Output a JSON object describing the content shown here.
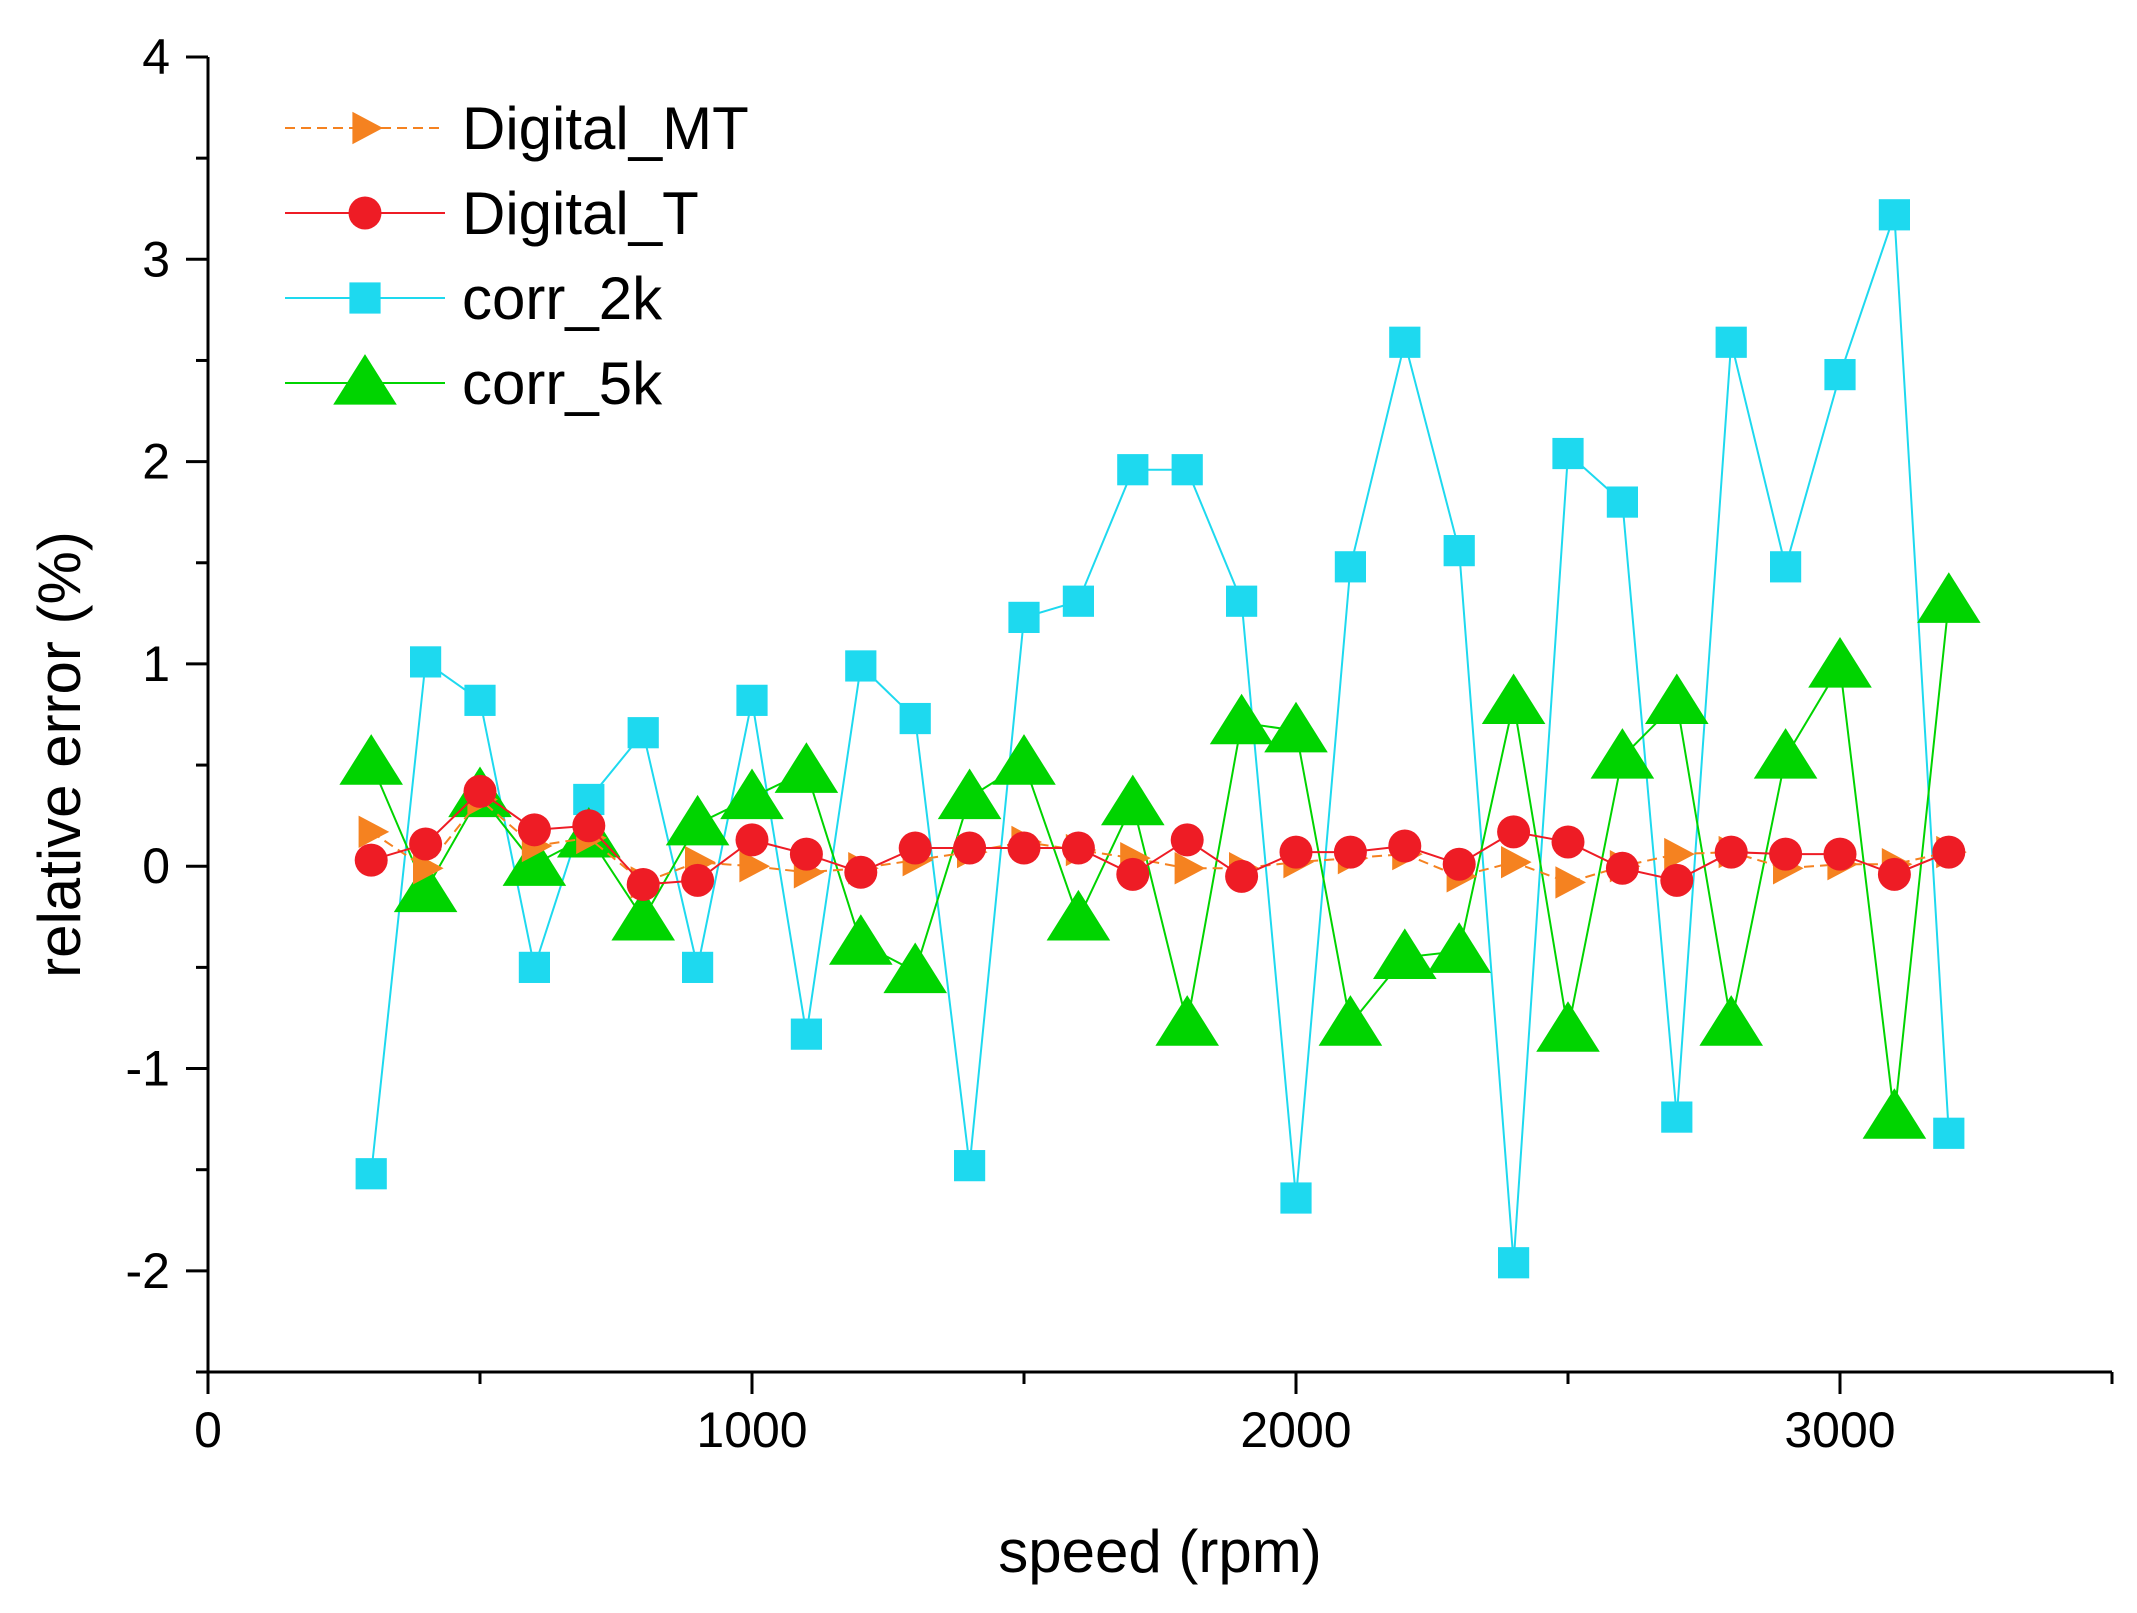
{
  "chart_data": {
    "type": "line",
    "title": "",
    "xlabel": "speed (rpm)",
    "ylabel": "relative error (%)",
    "xlim": [
      0,
      3500
    ],
    "ylim": [
      -2.5,
      4
    ],
    "xticks": [
      0,
      1000,
      2000,
      3000
    ],
    "xtick_labels": [
      "0",
      "1000",
      "2000",
      "3000"
    ],
    "yticks": [
      -2,
      -1,
      0,
      1,
      2,
      3,
      4
    ],
    "ytick_labels": [
      "-2",
      "-1",
      "0",
      "1",
      "2",
      "3",
      "4"
    ],
    "x_minor_step": 500,
    "y_minor_step": 0.5,
    "grid": false,
    "legend_position": "top-left",
    "x": [
      300,
      400,
      500,
      600,
      700,
      800,
      900,
      1000,
      1100,
      1200,
      1300,
      1400,
      1500,
      1600,
      1700,
      1800,
      1900,
      2000,
      2100,
      2200,
      2300,
      2400,
      2500,
      2600,
      2700,
      2800,
      2900,
      3000,
      3100,
      3200
    ],
    "series": [
      {
        "name": "Digital_MT",
        "color": "#F58220",
        "marker": "triangle-right",
        "line_style": "dashed",
        "values": [
          0.17,
          -0.01,
          0.33,
          0.1,
          0.14,
          -0.08,
          0.02,
          0.0,
          -0.03,
          -0.01,
          0.03,
          0.07,
          0.12,
          0.08,
          0.04,
          -0.01,
          -0.01,
          0.02,
          0.04,
          0.06,
          -0.05,
          0.02,
          -0.08,
          0.0,
          0.06,
          0.07,
          -0.01,
          0.01,
          0.01,
          0.07
        ]
      },
      {
        "name": "Digital_T",
        "color": "#EE1C25",
        "marker": "circle",
        "line_style": "solid",
        "values": [
          0.03,
          0.11,
          0.37,
          0.18,
          0.2,
          -0.09,
          -0.07,
          0.13,
          0.06,
          -0.03,
          0.09,
          0.09,
          0.09,
          0.09,
          -0.04,
          0.13,
          -0.05,
          0.07,
          0.07,
          0.1,
          0.01,
          0.17,
          0.12,
          -0.01,
          -0.07,
          0.07,
          0.06,
          0.06,
          -0.04,
          0.07
        ]
      },
      {
        "name": "corr_2k",
        "color": "#1ED9EF",
        "marker": "square",
        "line_style": "solid",
        "values": [
          -1.52,
          1.01,
          0.82,
          -0.5,
          0.33,
          0.66,
          -0.5,
          0.82,
          -0.83,
          0.99,
          0.73,
          -1.48,
          1.23,
          1.31,
          1.96,
          1.96,
          1.31,
          -1.64,
          1.48,
          2.59,
          1.56,
          -1.96,
          2.04,
          1.8,
          -1.24,
          2.59,
          1.48,
          2.43,
          3.22,
          -1.32
        ]
      },
      {
        "name": "corr_5k",
        "color": "#00D400",
        "marker": "triangle-up",
        "line_style": "solid",
        "values": [
          0.51,
          -0.12,
          0.35,
          0.01,
          0.15,
          -0.26,
          0.21,
          0.34,
          0.47,
          -0.38,
          -0.52,
          0.34,
          0.51,
          -0.26,
          0.31,
          -0.78,
          0.71,
          0.67,
          -0.78,
          -0.45,
          -0.42,
          0.81,
          -0.81,
          0.54,
          0.81,
          -0.78,
          0.54,
          0.99,
          -1.24,
          1.31
        ]
      }
    ]
  }
}
